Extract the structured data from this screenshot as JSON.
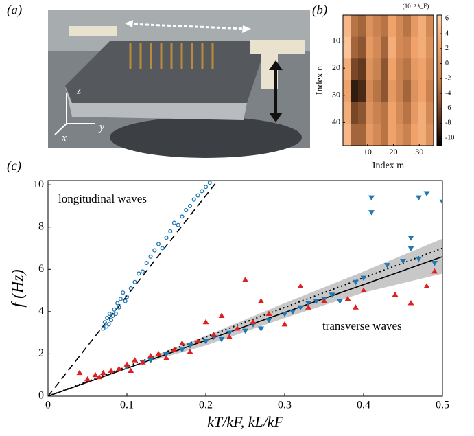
{
  "photo": {
    "label": "(a)",
    "axes": [
      "z",
      "y",
      "x"
    ]
  },
  "chart_data": [
    {
      "type": "heatmap",
      "label": "(b)",
      "colorbar_title": "(10⁻³ λ_F)",
      "xlabel": "Index m",
      "ylabel": "Index n",
      "xlim": [
        0.5,
        35.5
      ],
      "ylim": [
        0.5,
        48.5
      ],
      "y_inverted": true,
      "xticks": [
        10,
        20,
        30
      ],
      "yticks": [
        10,
        20,
        30,
        40
      ],
      "zlim": [
        -11,
        6.5
      ],
      "zticks": [
        6,
        4,
        2,
        0,
        -2,
        -4,
        -6,
        -8,
        -10
      ],
      "colormap": [
        "#000000",
        "#6b3d22",
        "#c7804e",
        "#f0a36a",
        "#ffd5b0"
      ],
      "z": [
        [
          4,
          -3,
          -4,
          0,
          -2,
          -3,
          2,
          -1,
          -3,
          1,
          3,
          -1
        ],
        [
          5,
          -4,
          -5,
          1,
          -1,
          -4,
          3,
          -1,
          -2,
          2,
          3,
          0
        ],
        [
          3,
          -6,
          -7,
          0,
          -2,
          -5,
          2,
          -2,
          -3,
          1,
          2,
          -1
        ],
        [
          2,
          -9,
          -8,
          -1,
          -3,
          -5,
          1,
          -2,
          -4,
          0,
          2,
          -2
        ],
        [
          3,
          -6,
          -5,
          0,
          -2,
          -3,
          2,
          -1,
          -3,
          1,
          3,
          -1
        ],
        [
          4,
          -4,
          -4,
          1,
          -1,
          -3,
          2,
          0,
          -2,
          2,
          3,
          0
        ]
      ]
    },
    {
      "type": "scatter",
      "label": "(c)",
      "xlabel": "kT/kF, kL/kF",
      "ylabel": "f (Hz)",
      "xlim": [
        0,
        0.5
      ],
      "ylim": [
        0,
        10.2
      ],
      "xticks": [
        0,
        0.1,
        0.2,
        0.3,
        0.4,
        0.5
      ],
      "yticks": [
        0,
        2,
        4,
        6,
        8,
        10
      ],
      "annotations": [
        "longitudinal waves",
        "transverse waves"
      ],
      "band": {
        "color": "#c8c8c8",
        "x": [
          0.13,
          0.2,
          0.3,
          0.4,
          0.5
        ],
        "lower": [
          1.65,
          2.4,
          3.7,
          4.9,
          5.8
        ],
        "upper": [
          1.85,
          2.85,
          4.4,
          5.9,
          7.45
        ]
      },
      "lines": [
        {
          "style": "dashed",
          "color": "#000000",
          "x": [
            0,
            0.215
          ],
          "values": [
            0,
            10.2
          ]
        },
        {
          "style": "dotted",
          "color": "#000000",
          "x": [
            0,
            0.5
          ],
          "values": [
            0,
            7.0
          ]
        },
        {
          "style": "solid",
          "color": "#000000",
          "x": [
            0,
            0.5
          ],
          "values": [
            0,
            6.6
          ]
        }
      ],
      "series": [
        {
          "marker": "circle",
          "color": "#1f77b4",
          "x": [
            0.07,
            0.072,
            0.074,
            0.075,
            0.077,
            0.078,
            0.08,
            0.082,
            0.084,
            0.086,
            0.088,
            0.09,
            0.092,
            0.095,
            0.098,
            0.1,
            0.105,
            0.11,
            0.115,
            0.12,
            0.125,
            0.13,
            0.135,
            0.14,
            0.145,
            0.15,
            0.155,
            0.16,
            0.165,
            0.17,
            0.175,
            0.18,
            0.185,
            0.19,
            0.195,
            0.2,
            0.205
          ],
          "values": [
            3.2,
            3.5,
            3.3,
            3.7,
            3.4,
            3.9,
            3.6,
            3.8,
            4.1,
            3.9,
            4.4,
            4.2,
            4.6,
            4.9,
            4.5,
            4.7,
            5.1,
            5.4,
            5.8,
            5.9,
            6.3,
            6.6,
            6.9,
            7.2,
            7.0,
            7.5,
            7.8,
            8.2,
            8.1,
            8.5,
            8.8,
            9.0,
            9.3,
            9.5,
            9.7,
            9.9,
            10.1
          ]
        },
        {
          "marker": "triangle-down",
          "color": "#1f77b4",
          "x": [
            0.1,
            0.12,
            0.13,
            0.15,
            0.17,
            0.18,
            0.2,
            0.21,
            0.22,
            0.23,
            0.25,
            0.26,
            0.27,
            0.28,
            0.3,
            0.31,
            0.32,
            0.33,
            0.34,
            0.35,
            0.36,
            0.37,
            0.39,
            0.4,
            0.41,
            0.41,
            0.43,
            0.45,
            0.46,
            0.46,
            0.47,
            0.47,
            0.48,
            0.49,
            0.5
          ],
          "values": [
            1.4,
            1.6,
            1.7,
            2.0,
            2.2,
            2.4,
            2.6,
            2.8,
            2.7,
            3.0,
            3.1,
            3.4,
            3.2,
            3.6,
            3.9,
            4.0,
            4.2,
            4.4,
            4.5,
            4.6,
            4.8,
            4.5,
            5.4,
            5.6,
            9.4,
            8.7,
            6.2,
            6.4,
            7.5,
            7.0,
            6.5,
            9.4,
            9.6,
            6.3,
            9.2
          ]
        },
        {
          "marker": "triangle-up",
          "color": "#e02020",
          "x": [
            0.04,
            0.05,
            0.06,
            0.065,
            0.07,
            0.08,
            0.09,
            0.1,
            0.105,
            0.11,
            0.12,
            0.13,
            0.14,
            0.15,
            0.16,
            0.17,
            0.18,
            0.19,
            0.2,
            0.21,
            0.22,
            0.23,
            0.24,
            0.25,
            0.26,
            0.27,
            0.28,
            0.3,
            0.32,
            0.33,
            0.35,
            0.38,
            0.39,
            0.4,
            0.44,
            0.46,
            0.48,
            0.49
          ],
          "values": [
            1.1,
            0.8,
            1.0,
            0.9,
            1.1,
            1.2,
            1.3,
            1.5,
            1.2,
            1.7,
            1.6,
            1.9,
            2.0,
            1.8,
            2.2,
            2.5,
            2.1,
            2.6,
            3.5,
            2.9,
            3.8,
            2.8,
            3.2,
            5.5,
            3.5,
            4.5,
            3.9,
            3.4,
            5.2,
            4.2,
            4.5,
            4.6,
            4.2,
            5.0,
            4.8,
            4.4,
            5.2,
            5.9
          ]
        }
      ]
    }
  ]
}
